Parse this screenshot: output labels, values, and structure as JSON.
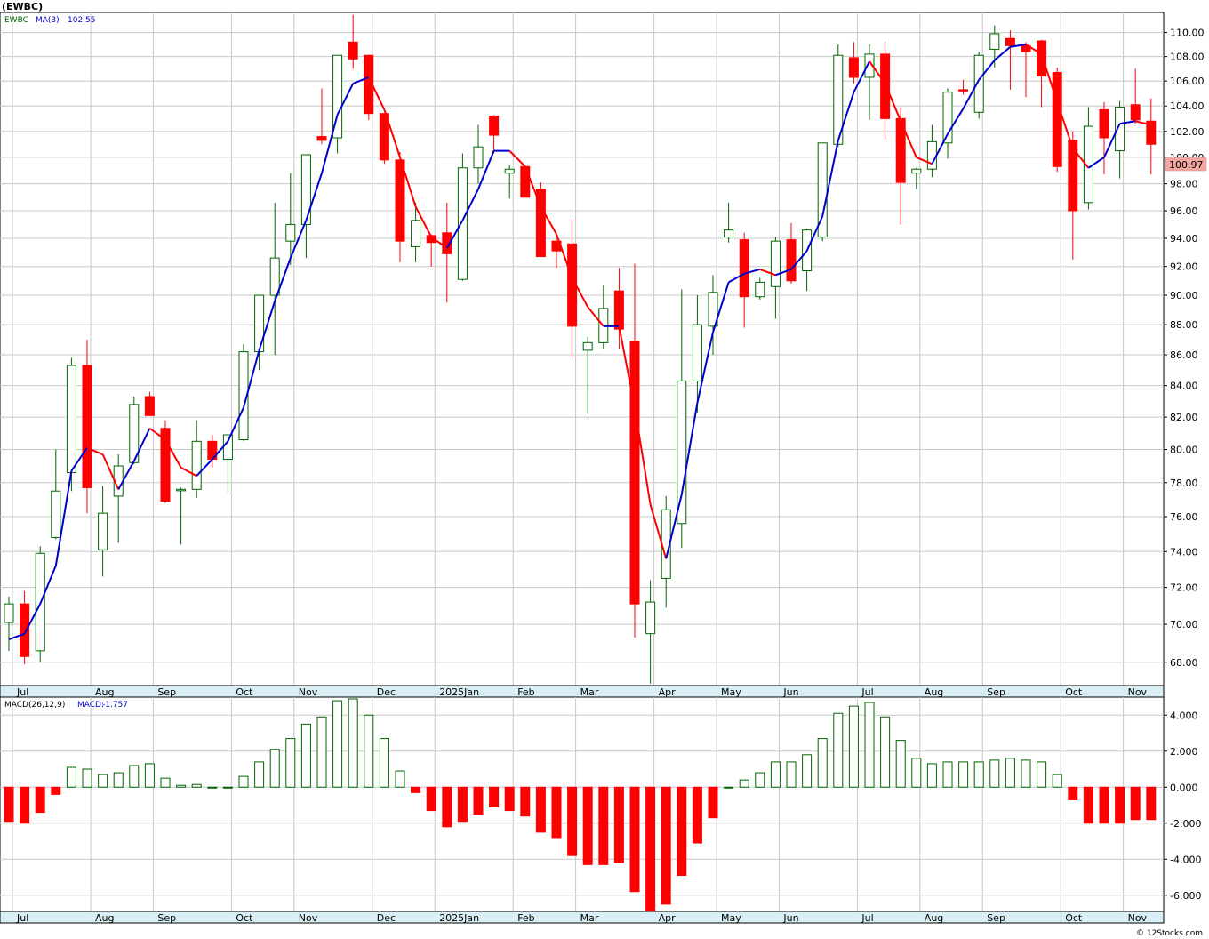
{
  "title": "(EWBC)",
  "footer": "© 12Stocks.com",
  "legend": {
    "ticker": "EWBC",
    "ma_label": "MA(3)",
    "ma_value": "102.55",
    "macd_label": "MACD(26,12,9)",
    "macd_value_label": "MACD:",
    "macd_value": "-1.757"
  },
  "last_price_tag": "100.97",
  "colors": {
    "up": "#006400",
    "down": "#ff0000",
    "ma_up": "#0000cc",
    "ma_down": "#ff0000",
    "grid": "#c8c8c8",
    "axisbar": "#d9eff5"
  },
  "chart_data": [
    {
      "type": "candlestick",
      "title": "(EWBC)",
      "x_tick_labels": [
        "Jul",
        "Aug",
        "Sep",
        "Oct",
        "Nov",
        "Dec",
        "2025Jan",
        "Feb",
        "Mar",
        "Apr",
        "May",
        "Jun",
        "Jul",
        "Aug",
        "Sep",
        "Oct",
        "Nov"
      ],
      "y_tick_labels": [
        "68.00",
        "70.00",
        "72.00",
        "74.00",
        "76.00",
        "78.00",
        "80.00",
        "82.00",
        "84.00",
        "86.00",
        "88.00",
        "90.00",
        "92.00",
        "94.00",
        "96.00",
        "98.00",
        "100.00",
        "102.00",
        "104.00",
        "106.00",
        "108.00",
        "110.00"
      ],
      "ylim": [
        66.8,
        111.7
      ],
      "log_scale": true,
      "grid": true,
      "series": [
        {
          "name": "EWBC",
          "candles": [
            [
              70.1,
              71.5,
              68.6,
              71.1
            ],
            [
              71.1,
              71.8,
              67.9,
              68.3
            ],
            [
              68.6,
              74.3,
              68.0,
              73.9
            ],
            [
              74.8,
              80.0,
              74.7,
              77.5
            ],
            [
              78.6,
              85.8,
              77.5,
              85.3
            ],
            [
              85.3,
              87.0,
              76.2,
              77.7
            ],
            [
              74.1,
              77.8,
              72.6,
              76.2
            ],
            [
              77.2,
              79.7,
              74.5,
              79.0
            ],
            [
              79.2,
              83.3,
              79.1,
              82.8
            ],
            [
              83.3,
              83.6,
              82.1,
              82.1
            ],
            [
              81.3,
              81.8,
              76.8,
              76.9
            ],
            [
              77.6,
              77.7,
              74.4,
              77.6
            ],
            [
              77.6,
              81.8,
              77.1,
              80.5
            ],
            [
              80.5,
              80.9,
              78.9,
              79.4
            ],
            [
              79.4,
              81.0,
              77.4,
              80.9
            ],
            [
              80.6,
              86.7,
              80.5,
              86.2
            ],
            [
              86.2,
              90.0,
              85.0,
              90.0
            ],
            [
              90.0,
              96.6,
              86.0,
              92.6
            ],
            [
              93.8,
              98.8,
              92.1,
              95.0
            ],
            [
              95.0,
              100.2,
              92.6,
              100.2
            ],
            [
              101.6,
              105.4,
              101.0,
              101.3
            ],
            [
              101.5,
              108.1,
              100.3,
              108.1
            ],
            [
              109.2,
              111.5,
              107.0,
              107.8
            ],
            [
              108.1,
              108.1,
              102.9,
              103.4
            ],
            [
              103.4,
              103.4,
              99.5,
              99.8
            ],
            [
              99.8,
              100.4,
              92.3,
              93.8
            ],
            [
              93.4,
              96.6,
              92.3,
              95.3
            ],
            [
              94.2,
              94.3,
              92.0,
              93.7
            ],
            [
              94.4,
              96.6,
              89.5,
              92.9
            ],
            [
              91.1,
              100.3,
              91.0,
              99.2
            ],
            [
              99.2,
              102.5,
              98.0,
              100.8
            ],
            [
              103.2,
              103.3,
              100.3,
              101.7
            ],
            [
              98.8,
              99.4,
              96.9,
              99.1
            ],
            [
              99.3,
              99.3,
              97.0,
              97.0
            ],
            [
              97.6,
              98.1,
              92.9,
              92.7
            ],
            [
              93.8,
              94.0,
              91.9,
              93.1
            ],
            [
              93.6,
              95.4,
              85.8,
              87.9
            ],
            [
              86.3,
              87.2,
              82.2,
              86.8
            ],
            [
              86.8,
              90.7,
              86.4,
              89.1
            ],
            [
              90.3,
              91.9,
              86.4,
              87.7
            ],
            [
              86.9,
              92.2,
              69.3,
              71.1
            ],
            [
              69.5,
              72.4,
              66.9,
              71.2
            ],
            [
              72.5,
              77.2,
              70.9,
              76.4
            ],
            [
              75.6,
              90.4,
              74.2,
              84.3
            ],
            [
              84.3,
              90.0,
              82.3,
              88.0
            ],
            [
              87.9,
              91.4,
              86.0,
              90.2
            ],
            [
              94.1,
              96.6,
              93.7,
              94.6
            ],
            [
              93.9,
              94.4,
              87.8,
              89.9
            ],
            [
              89.9,
              91.2,
              89.7,
              90.9
            ],
            [
              90.6,
              94.1,
              88.4,
              93.8
            ],
            [
              93.9,
              95.1,
              90.8,
              91.0
            ],
            [
              91.7,
              94.7,
              90.3,
              94.6
            ],
            [
              94.1,
              101.1,
              93.8,
              101.1
            ],
            [
              101.0,
              109.0,
              100.8,
              108.1
            ],
            [
              107.9,
              109.2,
              105.8,
              106.3
            ],
            [
              106.3,
              109.0,
              102.9,
              108.2
            ],
            [
              108.2,
              109.2,
              101.4,
              103.0
            ],
            [
              103.0,
              103.9,
              95.0,
              98.1
            ],
            [
              98.8,
              99.2,
              97.6,
              99.1
            ],
            [
              99.1,
              102.5,
              98.5,
              101.2
            ],
            [
              101.1,
              105.4,
              99.9,
              105.1
            ],
            [
              105.3,
              106.1,
              104.9,
              105.2
            ],
            [
              103.5,
              108.4,
              103.0,
              108.1
            ],
            [
              108.6,
              110.6,
              107.1,
              109.9
            ],
            [
              109.5,
              110.2,
              105.3,
              108.9
            ],
            [
              108.9,
              109.2,
              104.7,
              108.4
            ],
            [
              109.3,
              109.4,
              103.9,
              106.4
            ],
            [
              106.7,
              107.1,
              98.9,
              99.3
            ],
            [
              101.3,
              102.0,
              92.5,
              96.0
            ],
            [
              96.6,
              103.9,
              96.1,
              102.4
            ],
            [
              103.7,
              104.3,
              98.7,
              101.5
            ],
            [
              100.5,
              104.4,
              98.4,
              103.9
            ],
            [
              104.1,
              107.0,
              102.6,
              102.9
            ],
            [
              102.8,
              104.6,
              98.7,
              101.0
            ]
          ]
        },
        {
          "name": "MA(3)",
          "values": [
            69.2,
            69.5,
            71.1,
            73.2,
            78.7,
            80.1,
            79.7,
            77.6,
            79.3,
            81.3,
            80.6,
            78.9,
            78.4,
            79.4,
            80.5,
            82.6,
            86.3,
            89.6,
            92.6,
            95.3,
            98.8,
            103.3,
            105.8,
            106.3,
            103.7,
            100.0,
            96.3,
            94.1,
            93.3,
            95.3,
            97.6,
            100.5,
            100.5,
            99.3,
            96.3,
            94.3,
            91.2,
            89.2,
            87.9,
            87.9,
            82.6,
            76.7,
            73.6,
            77.3,
            82.9,
            87.5,
            90.9,
            91.5,
            91.8,
            91.4,
            91.8,
            93.1,
            95.6,
            101.3,
            105.1,
            107.6,
            105.8,
            102.8,
            100.0,
            99.5,
            101.8,
            103.8,
            106.1,
            107.7,
            108.8,
            109.0,
            108.2,
            104.3,
            100.7,
            99.2,
            100.0,
            102.6,
            102.8,
            102.5
          ]
        }
      ]
    },
    {
      "type": "bar",
      "title": "MACD(26,12,9)",
      "y_tick_labels": [
        "-6.000",
        "-4.000",
        "-2.000",
        "0.000",
        "2.000",
        "4.000"
      ],
      "ylim": [
        -6.9,
        5.0
      ],
      "grid": true,
      "series": [
        {
          "name": "MACD",
          "values": [
            -1.9,
            -2.0,
            -1.4,
            -0.4,
            1.1,
            1.0,
            0.7,
            0.8,
            1.2,
            1.3,
            0.5,
            0.1,
            0.15,
            0.0,
            0.0,
            0.6,
            1.4,
            2.1,
            2.7,
            3.5,
            3.9,
            4.8,
            4.9,
            4.0,
            2.7,
            0.9,
            -0.3,
            -1.3,
            -2.2,
            -1.9,
            -1.5,
            -1.1,
            -1.3,
            -1.6,
            -2.5,
            -2.8,
            -3.8,
            -4.3,
            -4.3,
            -4.2,
            -5.8,
            -6.9,
            -6.5,
            -4.9,
            -3.1,
            -1.7,
            0.0,
            0.4,
            0.8,
            1.4,
            1.4,
            1.8,
            2.7,
            4.1,
            4.5,
            4.7,
            3.9,
            2.6,
            1.6,
            1.3,
            1.4,
            1.4,
            1.4,
            1.5,
            1.6,
            1.5,
            1.4,
            0.7,
            -0.7,
            -2.0,
            -2.0,
            -2.0,
            -1.8,
            -1.8
          ]
        }
      ]
    }
  ]
}
